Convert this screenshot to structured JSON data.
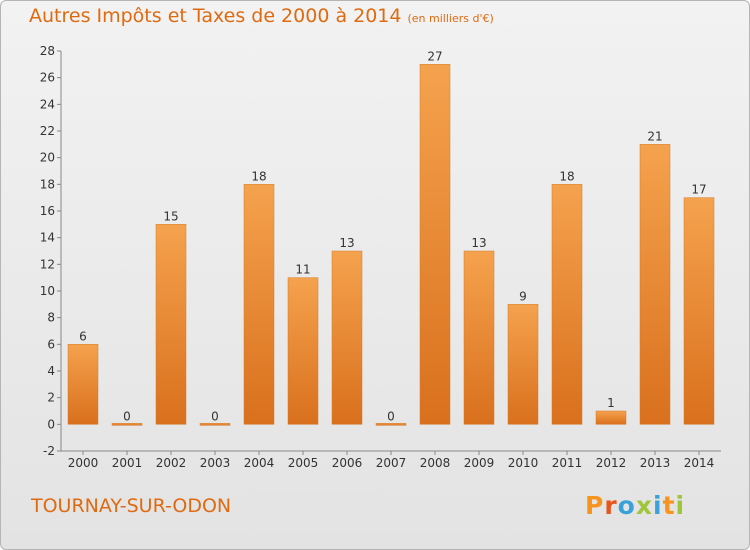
{
  "title": "Autres Impôts et Taxes de 2000 à 2014",
  "unit": "(en milliers d'€)",
  "location": "TOURNAY-SUR-ODON",
  "logo": {
    "letters": [
      "P",
      "r",
      "o",
      "x",
      "i",
      "t",
      "i"
    ],
    "colors": [
      "#f7941d",
      "#e8541c",
      "#3aa2d8",
      "#9fc63b",
      "#3aa2d8",
      "#f7941d",
      "#9fc63b"
    ]
  },
  "colors": {
    "bar": "#f0953f",
    "accent": "#e06a10",
    "axis": "#888888"
  },
  "chart_data": {
    "type": "bar",
    "title": "Autres Impôts et Taxes de 2000 à 2014",
    "xlabel": "",
    "ylabel": "",
    "categories": [
      "2000",
      "2001",
      "2002",
      "2003",
      "2004",
      "2005",
      "2006",
      "2007",
      "2008",
      "2009",
      "2010",
      "2011",
      "2012",
      "2013",
      "2014"
    ],
    "values": [
      6,
      0,
      15,
      0,
      18,
      11,
      13,
      0,
      27,
      13,
      9,
      18,
      1,
      21,
      17
    ],
    "ylim": [
      -2,
      28
    ],
    "yticks": [
      -2,
      0,
      2,
      4,
      6,
      8,
      10,
      12,
      14,
      16,
      18,
      20,
      22,
      24,
      26,
      28
    ],
    "grid": false,
    "legend": "none"
  }
}
